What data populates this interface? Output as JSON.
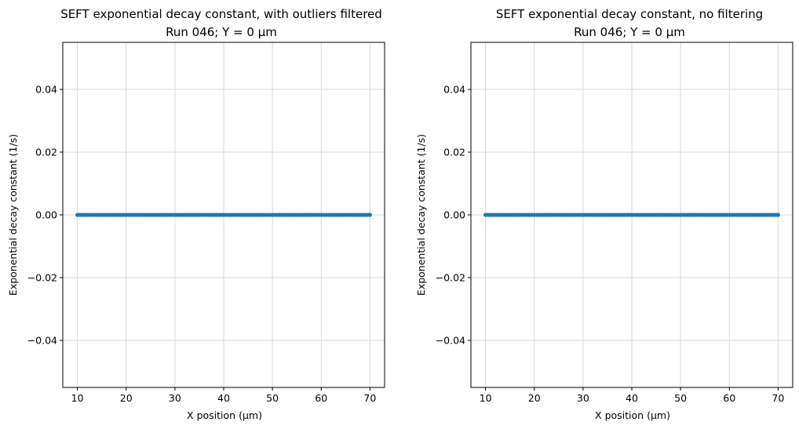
{
  "chart_data": [
    {
      "type": "scatter",
      "title_line1": "SEFT exponential decay constant, with outliers filtered",
      "title_line2": "Run 046; Y = 0 µm",
      "xlabel": "X position (µm)",
      "ylabel": "Exponential decay constant (1/s)",
      "xlim": [
        7,
        73
      ],
      "ylim": [
        -0.055,
        0.055
      ],
      "xticks": [
        10,
        20,
        30,
        40,
        50,
        60,
        70
      ],
      "xtick_labels": [
        "10",
        "20",
        "30",
        "40",
        "50",
        "60",
        "70"
      ],
      "yticks": [
        -0.04,
        -0.02,
        0.0,
        0.02,
        0.04
      ],
      "ytick_labels": [
        "−0.04",
        "−0.02",
        "0.00",
        "0.02",
        "0.04"
      ],
      "grid": true,
      "color": "#1f77b4",
      "series": [
        {
          "x_start": 10,
          "x_end": 70,
          "x_step": 0.5,
          "y": 0.0
        }
      ]
    },
    {
      "type": "scatter",
      "title_line1": "SEFT exponential decay constant, no filtering",
      "title_line2": "Run 046; Y = 0 µm",
      "xlabel": "X position (µm)",
      "ylabel": "Exponential decay constant (1/s)",
      "xlim": [
        7,
        73
      ],
      "ylim": [
        -0.055,
        0.055
      ],
      "xticks": [
        10,
        20,
        30,
        40,
        50,
        60,
        70
      ],
      "xtick_labels": [
        "10",
        "20",
        "30",
        "40",
        "50",
        "60",
        "70"
      ],
      "yticks": [
        -0.04,
        -0.02,
        0.0,
        0.02,
        0.04
      ],
      "ytick_labels": [
        "−0.04",
        "−0.02",
        "0.00",
        "0.02",
        "0.04"
      ],
      "grid": true,
      "color": "#1f77b4",
      "series": [
        {
          "x_start": 10,
          "x_end": 70,
          "x_step": 0.5,
          "y": 0.0
        }
      ]
    }
  ]
}
